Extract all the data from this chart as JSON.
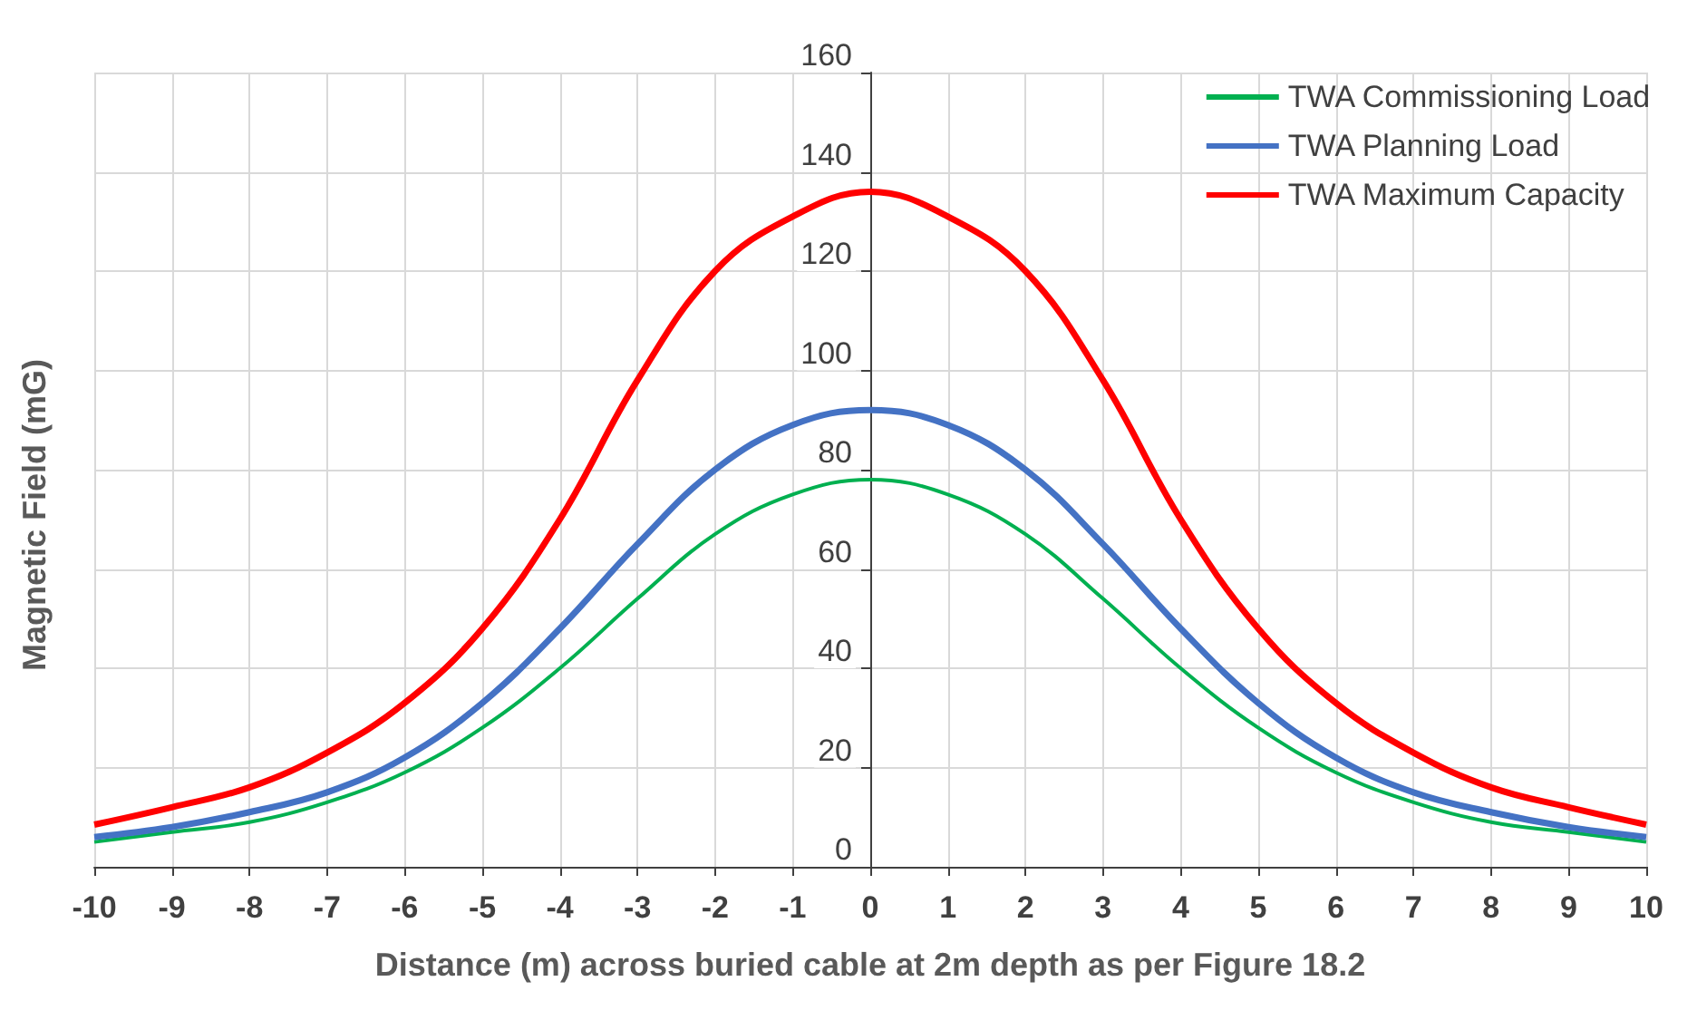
{
  "chart_data": {
    "type": "line",
    "xlabel": "Distance (m) across buried cable at 2m depth as per Figure 18.2",
    "ylabel": "Magnetic Field (mG)",
    "x": [
      -10,
      -9,
      -8,
      -7,
      -6,
      -5,
      -4,
      -3,
      -2,
      -1,
      0,
      1,
      2,
      3,
      4,
      5,
      6,
      7,
      8,
      9,
      10
    ],
    "series": [
      {
        "name": "TWA Commissioning Load",
        "color": "#00b050",
        "values": [
          5,
          7,
          9,
          13,
          19,
          28,
          40,
          54,
          67,
          75,
          78,
          75,
          67,
          54,
          40,
          28,
          19,
          13,
          9,
          7,
          5
        ]
      },
      {
        "name": "TWA Planning Load",
        "color": "#4472c4",
        "values": [
          6,
          8,
          11,
          15,
          22,
          33,
          48,
          65,
          80,
          89,
          92,
          89,
          80,
          65,
          48,
          33,
          22,
          15,
          11,
          8,
          6
        ]
      },
      {
        "name": "TWA Maximum Capacity",
        "color": "#ff0000",
        "values": [
          8.5,
          12,
          16,
          23,
          33,
          48,
          70,
          98,
          120,
          131,
          136,
          131,
          120,
          98,
          70,
          48,
          33,
          23,
          16,
          12,
          8.5
        ]
      }
    ],
    "xlim": [
      -10,
      10
    ],
    "xticks": [
      -10,
      -9,
      -8,
      -7,
      -6,
      -5,
      -4,
      -3,
      -2,
      -1,
      0,
      1,
      2,
      3,
      4,
      5,
      6,
      7,
      8,
      9,
      10
    ],
    "ylim": [
      0,
      160
    ],
    "yticks": [
      0,
      20,
      40,
      60,
      80,
      100,
      120,
      140,
      160
    ],
    "grid": true,
    "legend": "top right",
    "marker": "none",
    "line_style": "solid"
  }
}
